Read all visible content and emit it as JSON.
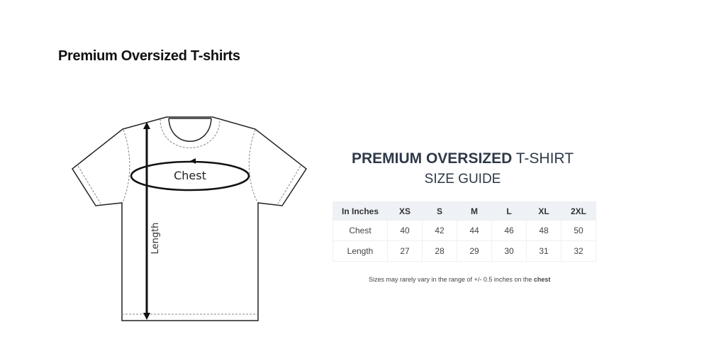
{
  "page_title": "Premium Oversized T-shirts",
  "diagram": {
    "chest_label": "Chest",
    "length_label": "Length"
  },
  "guide": {
    "title_bold": "PREMIUM OVERSIZED",
    "title_rest": " T-SHIRT",
    "subtitle": "SIZE GUIDE",
    "headers": [
      "In Inches",
      "XS",
      "S",
      "M",
      "L",
      "XL",
      "2XL"
    ],
    "rows": [
      {
        "label": "Chest",
        "values": [
          "40",
          "42",
          "44",
          "46",
          "48",
          "50"
        ]
      },
      {
        "label": "Length",
        "values": [
          "27",
          "28",
          "29",
          "30",
          "31",
          "32"
        ]
      }
    ],
    "note_prefix": "Sizes may rarely vary in the range of +/- 0.5 inches on the ",
    "note_bold": "chest"
  }
}
